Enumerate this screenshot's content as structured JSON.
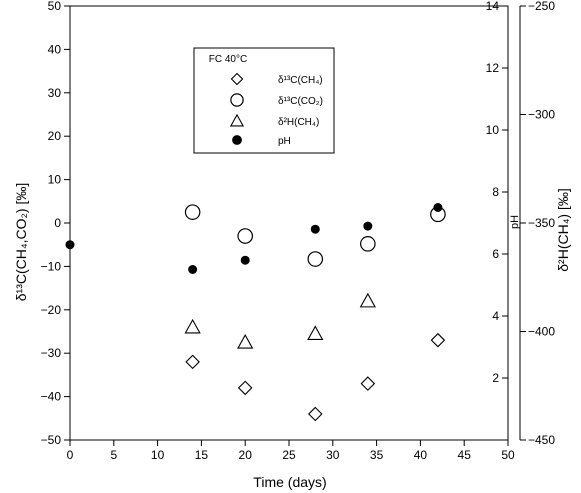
{
  "chart_data": {
    "type": "scatter",
    "title": "",
    "xlabel": "Time (days)",
    "left_ylabel": "δ¹³C(CH₄,CO₂) [‰]",
    "inner_right_ylabel": "pH",
    "outer_right_ylabel": "δ²H(CH₄) [‰]",
    "xlim": [
      0,
      50
    ],
    "x_ticks": [
      0,
      5,
      10,
      15,
      20,
      25,
      30,
      35,
      40,
      45,
      50
    ],
    "left_ylim": [
      -50,
      50
    ],
    "left_ticks": [
      -50,
      -40,
      -30,
      -20,
      -10,
      0,
      10,
      20,
      30,
      40,
      50
    ],
    "ph_ylim": [
      0,
      14
    ],
    "ph_ticks": [
      2,
      4,
      6,
      8,
      10,
      12,
      14
    ],
    "d2h_ylim": [
      -450,
      -250
    ],
    "d2h_ticks": [
      -450,
      -400,
      -350,
      -300,
      -250
    ],
    "legend": {
      "title": "FC 40°C",
      "position": "top-center",
      "entries": [
        {
          "marker": "diamond",
          "label": "δ¹³C(CH₄)"
        },
        {
          "marker": "circle-open",
          "label": "δ¹³C(CO₂)"
        },
        {
          "marker": "triangle",
          "label": "δ²H(CH₄)"
        },
        {
          "marker": "circle-filled",
          "label": "pH"
        }
      ]
    },
    "series": [
      {
        "name": "δ¹³C(CH₄)",
        "axis": "left",
        "marker": "diamond",
        "x": [
          14,
          20,
          28,
          34,
          42
        ],
        "y": [
          -32,
          -38,
          -44,
          -37,
          -27
        ]
      },
      {
        "name": "δ¹³C(CO₂)",
        "axis": "left",
        "marker": "circle-open",
        "x": [
          14,
          20,
          28,
          34,
          42
        ],
        "y": [
          2.5,
          -3,
          -8.3,
          -4.8,
          2
        ]
      },
      {
        "name": "δ²H(CH₄)",
        "axis": "d2h",
        "marker": "triangle",
        "x": [
          14,
          20,
          28,
          34
        ],
        "y": [
          -398,
          -405,
          -401,
          -386
        ]
      },
      {
        "name": "pH",
        "axis": "ph",
        "marker": "circle-filled",
        "x": [
          0,
          14,
          20,
          28,
          34,
          42
        ],
        "y": [
          6.3,
          5.5,
          5.8,
          6.8,
          6.9,
          7.5
        ]
      }
    ]
  }
}
